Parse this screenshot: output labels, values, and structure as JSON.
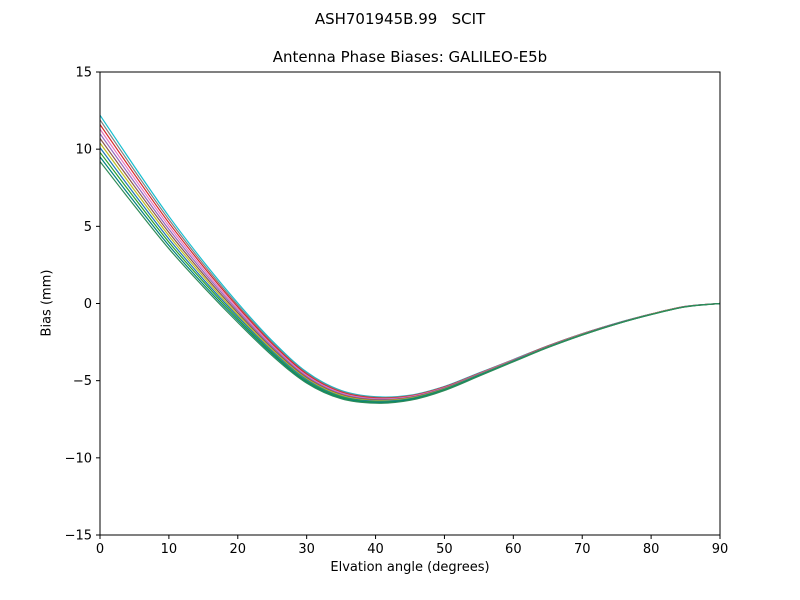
{
  "figure": {
    "suptitle": "ASH701945B.99   SCIT",
    "axes_title": "Antenna Phase Biases: GALILEO-E5b",
    "xlabel": "Elvation angle (degrees)",
    "ylabel": "Bias (mm)"
  },
  "chart_data": {
    "type": "line",
    "suptitle": "ASH701945B.99   SCIT",
    "title": "Antenna Phase Biases: GALILEO-E5b",
    "xlabel": "Elvation angle (degrees)",
    "ylabel": "Bias (mm)",
    "xlim": [
      0,
      90
    ],
    "ylim": [
      -15,
      15
    ],
    "xticks": [
      0,
      10,
      20,
      30,
      40,
      50,
      60,
      70,
      80,
      90
    ],
    "yticks": [
      -15,
      -10,
      -5,
      0,
      5,
      10,
      15
    ],
    "grid": false,
    "legend": "none",
    "x": [
      0,
      5,
      10,
      15,
      20,
      25,
      30,
      35,
      40,
      45,
      50,
      55,
      60,
      65,
      70,
      75,
      80,
      85,
      90
    ],
    "series": [
      {
        "name": "line-01",
        "color": "#17becf",
        "values": [
          12.2,
          8.88,
          5.65,
          2.73,
          0.03,
          -2.42,
          -4.44,
          -5.63,
          -6.04,
          -5.94,
          -5.37,
          -4.5,
          -3.63,
          -2.74,
          -1.96,
          -1.27,
          -0.68,
          -0.19,
          0.0
        ]
      },
      {
        "name": "line-02",
        "color": "#7f7f7f",
        "values": [
          11.9,
          8.62,
          5.44,
          2.56,
          -0.1,
          -2.52,
          -4.51,
          -5.68,
          -6.08,
          -5.97,
          -5.39,
          -4.52,
          -3.64,
          -2.75,
          -1.96,
          -1.28,
          -0.68,
          -0.19,
          0.0
        ]
      },
      {
        "name": "line-03",
        "color": "#d62728",
        "values": [
          11.6,
          8.37,
          5.23,
          2.4,
          -0.22,
          -2.61,
          -4.58,
          -5.74,
          -6.12,
          -6.0,
          -5.42,
          -4.54,
          -3.66,
          -2.76,
          -1.97,
          -1.28,
          -0.69,
          -0.19,
          0.0
        ]
      },
      {
        "name": "line-04",
        "color": "#e377c2",
        "values": [
          11.3,
          8.11,
          5.02,
          2.23,
          -0.35,
          -2.71,
          -4.66,
          -5.79,
          -6.17,
          -6.03,
          -5.45,
          -4.56,
          -3.67,
          -2.78,
          -1.98,
          -1.29,
          -0.69,
          -0.19,
          0.0
        ]
      },
      {
        "name": "line-05",
        "color": "#9467bd",
        "values": [
          11.0,
          7.86,
          4.81,
          2.07,
          -0.47,
          -2.8,
          -4.73,
          -5.85,
          -6.21,
          -6.07,
          -5.47,
          -4.58,
          -3.69,
          -2.79,
          -1.99,
          -1.29,
          -0.7,
          -0.2,
          0.0
        ]
      },
      {
        "name": "line-06",
        "color": "#8c564b",
        "values": [
          10.7,
          7.6,
          4.6,
          1.9,
          -0.6,
          -2.9,
          -4.8,
          -5.9,
          -6.25,
          -6.1,
          -5.5,
          -4.6,
          -3.7,
          -2.8,
          -2.0,
          -1.3,
          -0.7,
          -0.2,
          0.0
        ]
      },
      {
        "name": "line-07",
        "color": "#bcbd22",
        "values": [
          10.4,
          7.35,
          4.39,
          1.74,
          -0.73,
          -3.0,
          -4.87,
          -5.95,
          -6.29,
          -6.13,
          -5.53,
          -4.62,
          -3.72,
          -2.81,
          -2.01,
          -1.31,
          -0.7,
          -0.2,
          0.0
        ]
      },
      {
        "name": "line-08",
        "color": "#1f77b4",
        "values": [
          10.1,
          7.09,
          4.18,
          1.57,
          -0.85,
          -3.09,
          -4.94,
          -6.01,
          -6.33,
          -6.17,
          -5.55,
          -4.64,
          -3.73,
          -2.82,
          -2.02,
          -1.31,
          -0.71,
          -0.21,
          0.0
        ]
      },
      {
        "name": "line-09",
        "color": "#2ca02c",
        "values": [
          9.8,
          6.84,
          3.97,
          1.41,
          -0.98,
          -3.19,
          -5.02,
          -6.06,
          -6.38,
          -6.2,
          -5.58,
          -4.66,
          -3.75,
          -2.84,
          -2.03,
          -1.32,
          -0.71,
          -0.21,
          0.0
        ]
      },
      {
        "name": "line-10",
        "color": "#008080",
        "values": [
          9.5,
          6.58,
          3.76,
          1.24,
          -1.1,
          -3.28,
          -5.09,
          -6.12,
          -6.42,
          -6.23,
          -5.61,
          -4.68,
          -3.76,
          -2.85,
          -2.04,
          -1.32,
          -0.72,
          -0.21,
          0.0
        ]
      },
      {
        "name": "line-11",
        "color": "#2e8b57",
        "values": [
          9.2,
          6.33,
          3.55,
          1.08,
          -1.23,
          -3.38,
          -5.16,
          -6.17,
          -6.46,
          -6.27,
          -5.64,
          -4.71,
          -3.78,
          -2.86,
          -2.05,
          -1.33,
          -0.72,
          -0.22,
          0.0
        ]
      }
    ]
  }
}
